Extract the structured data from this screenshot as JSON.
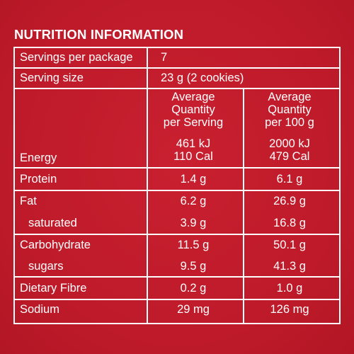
{
  "title": "NUTRITION INFORMATION",
  "servings_per_package": {
    "label": "Servings per package",
    "value": "7"
  },
  "serving_size": {
    "label": "Serving size",
    "value": "23 g (2 cookies)"
  },
  "headers": {
    "per_serving": [
      "Average",
      "Quantity",
      "per Serving"
    ],
    "per_100g": [
      "Average",
      "Quantity",
      "per 100 g"
    ]
  },
  "rows": [
    {
      "label": "Energy",
      "per_serving": [
        "461 kJ",
        "110 Cal"
      ],
      "per_100g": [
        "2000 kJ",
        "479 Cal"
      ]
    },
    {
      "label": "Protein",
      "per_serving": "1.4 g",
      "per_100g": "6.1 g"
    },
    {
      "label": "Fat",
      "per_serving": "6.2 g",
      "per_100g": "26.9 g"
    },
    {
      "label": "saturated",
      "per_serving": "3.9 g",
      "per_100g": "16.8 g"
    },
    {
      "label": "Carbohydrate",
      "per_serving": "11.5 g",
      "per_100g": "50.1 g"
    },
    {
      "label": "sugars",
      "per_serving": "9.5 g",
      "per_100g": "41.3 g"
    },
    {
      "label": "Dietary Fibre",
      "per_serving": "0.2 g",
      "per_100g": "1.0 g"
    },
    {
      "label": "Sodium",
      "per_serving": "29 mg",
      "per_100g": "126 mg"
    }
  ]
}
